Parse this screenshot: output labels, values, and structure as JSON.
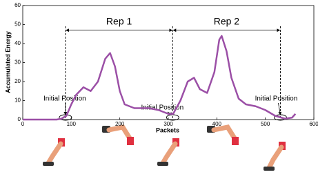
{
  "chart_data": {
    "type": "line",
    "x_label": "Packets",
    "y_label": "Accumulated Energy",
    "x": [
      0,
      70,
      80,
      90,
      100,
      110,
      125,
      140,
      155,
      170,
      180,
      190,
      200,
      210,
      230,
      260,
      280,
      300,
      310,
      325,
      340,
      353,
      365,
      380,
      395,
      405,
      410,
      420,
      430,
      445,
      460,
      480,
      500,
      520,
      540,
      555,
      562
    ],
    "series": [
      {
        "name": "Accumulated Energy",
        "color": "#9b4fa6",
        "values": [
          0,
          0,
          0.5,
          2,
          8,
          13,
          17,
          15,
          20,
          32,
          35,
          28,
          15,
          8,
          6,
          6,
          5,
          3,
          3,
          10,
          20,
          22,
          16,
          14,
          25,
          42,
          44,
          36,
          22,
          11,
          8,
          7,
          5,
          2,
          0.5,
          1,
          3
        ]
      }
    ],
    "xlim": [
      0,
      600
    ],
    "xticks": [
      0,
      100,
      200,
      300,
      400,
      500,
      600
    ],
    "ylim": [
      0,
      60
    ],
    "yticks": [
      0,
      10,
      20,
      30,
      40,
      50,
      60
    ],
    "rep_markers": [
      88,
      309,
      531
    ],
    "rep_arrow_level": 47,
    "reps": [
      {
        "label": "Rep 1",
        "start": 88,
        "end": 309
      },
      {
        "label": "Rep 2",
        "start": 309,
        "end": 531
      }
    ],
    "annotations": [
      "Initial Position",
      "Initial Position",
      "Initial Position"
    ]
  }
}
